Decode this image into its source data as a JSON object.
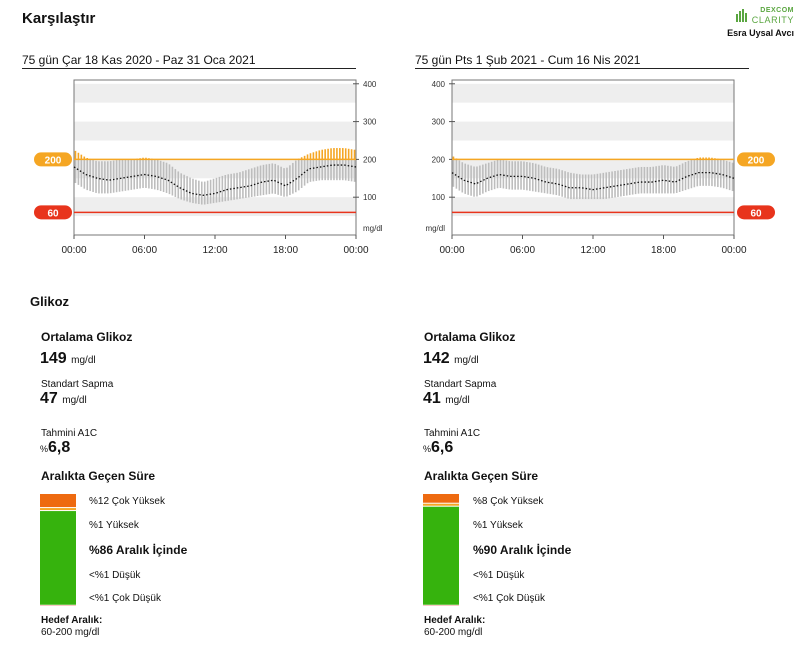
{
  "header": {
    "title": "Karşılaştır",
    "logo_brand": "DEXCOM",
    "logo_product": "CLARITY",
    "patient_name": "Esra Uysal Avcı"
  },
  "colors": {
    "high": "#f5a623",
    "low": "#e8341c",
    "very_high": "#ee6a10",
    "in_range": "#36b30d",
    "very_low": "#c9302c",
    "band": "#bdbdbd",
    "median": "#111111"
  },
  "section_title": "Glikoz",
  "periods": [
    {
      "title": "75 gün Çar 18 Kas 2020 - Paz 31 Oca 2021",
      "y_axis_side": "right",
      "high_badge": "200",
      "low_badge": "60",
      "avg_label": "Ortalama Glikoz",
      "avg_value": "149",
      "avg_unit": "mg/dl",
      "sd_label": "Standart Sapma",
      "sd_value": "47",
      "sd_unit": "mg/dl",
      "a1c_label": "Tahmini A1C",
      "a1c_prefix": "%",
      "a1c_value": "6,8",
      "tir_title": "Aralıkta Geçen Süre",
      "tir": {
        "very_high": 12,
        "high": 1,
        "in_range": 86,
        "low": 1,
        "very_low": 1,
        "very_high_label": "%12 Çok Yüksek",
        "high_label": "%1 Yüksek",
        "in_range_label": "%86 Aralık İçinde",
        "low_label": "<%1 Düşük",
        "very_low_label": "<%1 Çok Düşük"
      },
      "target_label": "Hedef Aralık:",
      "target_value": "60-200 mg/dl"
    },
    {
      "title": "75 gün Pts 1 Şub 2021 - Cum 16 Nis 2021",
      "y_axis_side": "left",
      "high_badge": "200",
      "low_badge": "60",
      "avg_label": "Ortalama Glikoz",
      "avg_value": "142",
      "avg_unit": "mg/dl",
      "sd_label": "Standart Sapma",
      "sd_value": "41",
      "sd_unit": "mg/dl",
      "a1c_label": "Tahmini A1C",
      "a1c_prefix": "%",
      "a1c_value": "6,6",
      "tir_title": "Aralıkta Geçen Süre",
      "tir": {
        "very_high": 8,
        "high": 1,
        "in_range": 90,
        "low": 1,
        "very_low": 1,
        "very_high_label": "%8 Çok Yüksek",
        "high_label": "%1 Yüksek",
        "in_range_label": "%90 Aralık İçinde",
        "low_label": "<%1 Düşük",
        "very_low_label": "<%1 Çok Düşük"
      },
      "target_label": "Hedef Aralık:",
      "target_value": "60-200 mg/dl"
    }
  ],
  "chart_data": [
    {
      "type": "line",
      "title": "75 gün Çar 18 Kas 2020 - Paz 31 Oca 2021",
      "x_ticks": [
        "00:00",
        "06:00",
        "12:00",
        "18:00",
        "00:00"
      ],
      "y_ticks": [
        100,
        200,
        300,
        400
      ],
      "ylim": [
        0,
        410
      ],
      "y_unit": "mg/dl",
      "target_range": [
        60,
        200
      ],
      "x_hours": [
        0,
        1,
        2,
        3,
        4,
        5,
        6,
        7,
        8,
        9,
        10,
        11,
        12,
        13,
        14,
        15,
        16,
        17,
        18,
        19,
        20,
        21,
        22,
        23,
        24
      ],
      "median": [
        180,
        160,
        150,
        145,
        150,
        155,
        160,
        155,
        145,
        125,
        110,
        105,
        110,
        120,
        125,
        130,
        140,
        145,
        130,
        150,
        175,
        180,
        185,
        185,
        180
      ],
      "p25": [
        140,
        120,
        110,
        110,
        115,
        120,
        125,
        120,
        110,
        95,
        85,
        80,
        85,
        90,
        95,
        100,
        105,
        110,
        100,
        115,
        140,
        145,
        145,
        145,
        140
      ],
      "p75": [
        225,
        205,
        195,
        195,
        200,
        200,
        205,
        200,
        190,
        165,
        150,
        140,
        150,
        160,
        165,
        175,
        185,
        190,
        175,
        200,
        215,
        225,
        230,
        230,
        225
      ]
    },
    {
      "type": "line",
      "title": "75 gün Pts 1 Şub 2021 - Cum 16 Nis 2021",
      "x_ticks": [
        "00:00",
        "06:00",
        "12:00",
        "18:00",
        "00:00"
      ],
      "y_ticks": [
        100,
        200,
        300,
        400
      ],
      "ylim": [
        0,
        410
      ],
      "y_unit": "mg/dl",
      "target_range": [
        60,
        200
      ],
      "x_hours": [
        0,
        1,
        2,
        3,
        4,
        5,
        6,
        7,
        8,
        9,
        10,
        11,
        12,
        13,
        14,
        15,
        16,
        17,
        18,
        19,
        20,
        21,
        22,
        23,
        24
      ],
      "median": [
        165,
        145,
        135,
        150,
        160,
        155,
        155,
        150,
        140,
        135,
        125,
        125,
        120,
        125,
        130,
        135,
        140,
        140,
        145,
        140,
        155,
        165,
        165,
        160,
        150
      ],
      "p25": [
        130,
        110,
        100,
        115,
        125,
        120,
        120,
        115,
        110,
        105,
        95,
        95,
        95,
        95,
        100,
        105,
        110,
        110,
        110,
        110,
        120,
        130,
        130,
        125,
        115
      ],
      "p75": [
        210,
        190,
        180,
        190,
        200,
        195,
        195,
        190,
        180,
        175,
        165,
        160,
        160,
        165,
        170,
        175,
        180,
        180,
        185,
        180,
        195,
        205,
        205,
        200,
        190
      ]
    }
  ]
}
